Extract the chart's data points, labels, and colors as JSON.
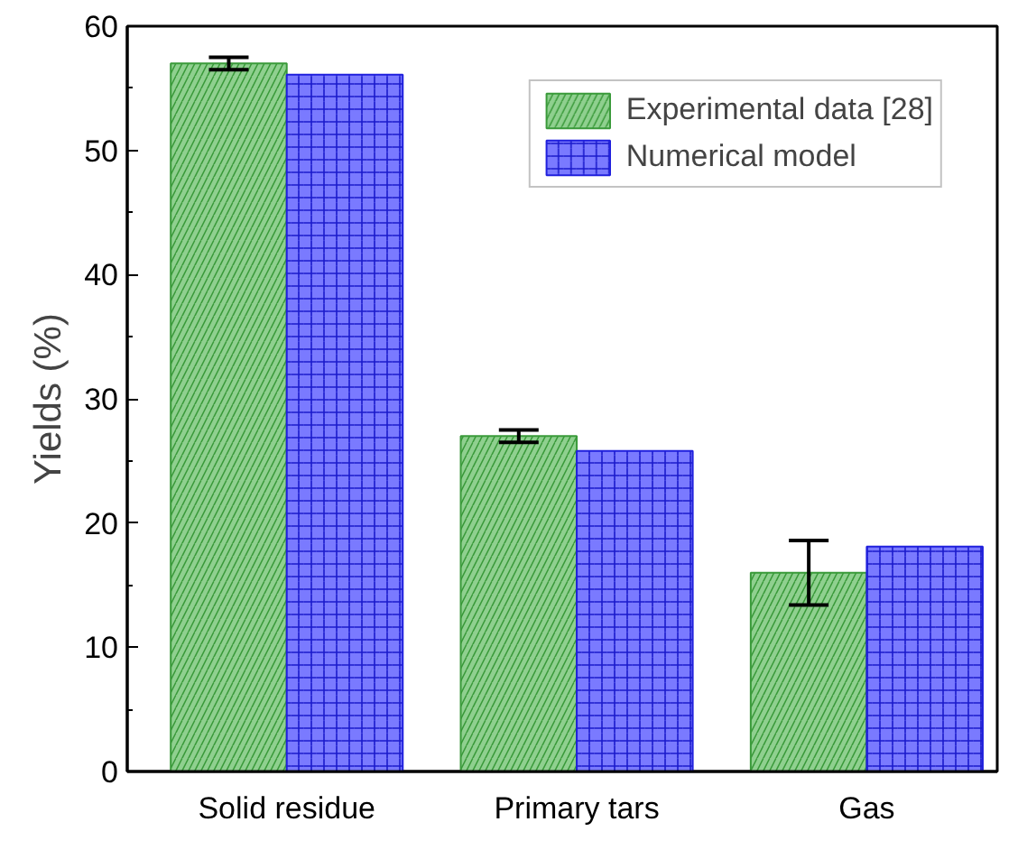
{
  "chart_data": {
    "type": "bar",
    "ylabel": "Yields (%)",
    "categories": [
      "Solid residue",
      "Primary tars",
      "Gas"
    ],
    "series": [
      {
        "name": "Experimental data [28]",
        "color": "#8fd08f",
        "values": [
          57.0,
          27.0,
          16.0
        ],
        "errors": [
          0.5,
          0.5,
          2.6
        ]
      },
      {
        "name": "Numerical model",
        "color": "#7a7aff",
        "values": [
          56.1,
          25.8,
          18.1
        ]
      }
    ],
    "ylim": [
      0,
      60
    ],
    "yticks": [
      0,
      10,
      20,
      30,
      40,
      50,
      60
    ],
    "grid": false,
    "legend": "top right"
  }
}
